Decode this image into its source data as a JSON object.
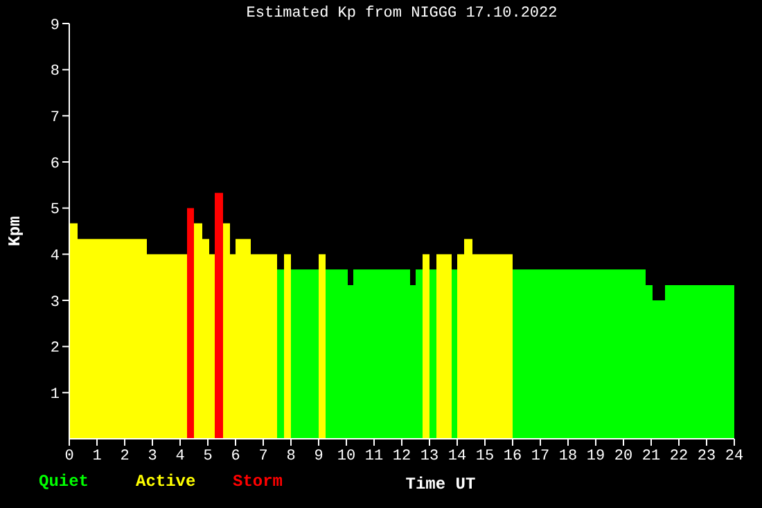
{
  "chart_data": {
    "type": "histogram",
    "title": "Estimated Kp from NIGGG 17.10.2022",
    "xlabel": "Time UT",
    "ylabel": "Kpm",
    "bins": [
      0,
      0.3,
      2.8,
      4.25,
      4.5,
      4.8,
      5.05,
      5.25,
      5.55,
      5.8,
      6.0,
      6.55,
      7.5,
      7.75,
      8.0,
      9.0,
      9.25,
      10.05,
      10.25,
      12.3,
      12.5,
      12.75,
      13.0,
      13.25,
      13.8,
      14.0,
      14.25,
      14.55,
      16.0,
      20.8,
      21.05,
      21.5,
      24
    ],
    "series": [
      {
        "name": "Quiet",
        "color": "#00ff00",
        "values": [
          null,
          null,
          null,
          null,
          null,
          null,
          null,
          null,
          null,
          null,
          null,
          null,
          3.67,
          null,
          3.67,
          null,
          3.67,
          3.33,
          3.67,
          3.33,
          3.67,
          null,
          3.67,
          null,
          3.67,
          null,
          null,
          null,
          3.67,
          3.33,
          3.0,
          3.33
        ]
      },
      {
        "name": "Active",
        "color": "#ffff00",
        "values": [
          4.67,
          4.33,
          4.0,
          null,
          4.67,
          4.33,
          4.0,
          null,
          4.67,
          4.0,
          4.33,
          4.0,
          null,
          4.0,
          null,
          4.0,
          null,
          null,
          null,
          null,
          null,
          4.0,
          null,
          4.0,
          null,
          4.0,
          4.33,
          4.0,
          null,
          null,
          null,
          null
        ]
      },
      {
        "name": "Storm",
        "color": "#ff0000",
        "values": [
          null,
          null,
          null,
          5.0,
          null,
          null,
          null,
          5.33,
          null,
          null,
          null,
          null,
          null,
          null,
          null,
          null,
          null,
          null,
          null,
          null,
          null,
          null,
          null,
          null,
          null,
          null,
          null,
          null,
          null,
          null,
          null,
          null
        ]
      }
    ],
    "xlim": [
      0,
      24
    ],
    "xticks": [
      0,
      1,
      2,
      3,
      4,
      5,
      6,
      7,
      8,
      9,
      10,
      11,
      12,
      13,
      14,
      15,
      16,
      17,
      18,
      19,
      20,
      21,
      22,
      23,
      24
    ],
    "ylim": [
      0,
      9
    ],
    "yticks": [
      1,
      2,
      3,
      4,
      5,
      6,
      7,
      8,
      9
    ],
    "legend": "bottom left"
  }
}
